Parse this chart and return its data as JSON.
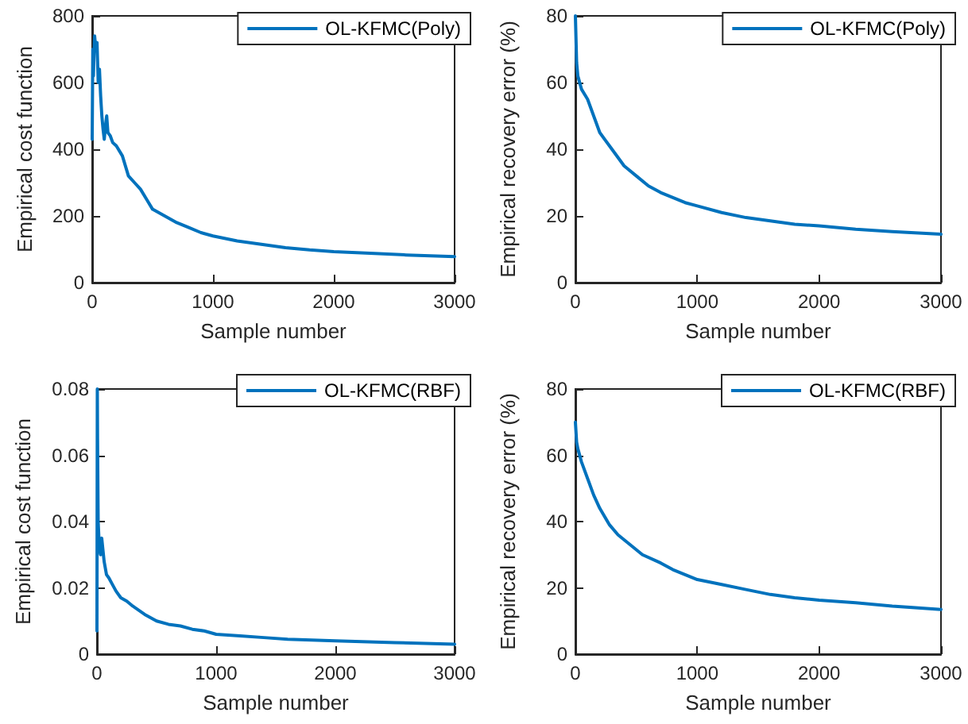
{
  "chart_data": [
    {
      "type": "line",
      "xlabel": "Sample number",
      "ylabel": "Empirical cost function",
      "xlim": [
        0,
        3000
      ],
      "xticks": [
        0,
        1000,
        2000,
        3000
      ],
      "ylim": [
        0,
        800
      ],
      "yticks": [
        0,
        200,
        400,
        600,
        800
      ],
      "grid": false,
      "legend": "top right",
      "marker": "none",
      "line_style": "solid",
      "series": [
        {
          "name": "OL-KFMC(Poly)",
          "color": "#0072bd",
          "x": [
            0,
            5,
            10,
            20,
            30,
            40,
            50,
            60,
            70,
            80,
            90,
            100,
            110,
            120,
            130,
            150,
            170,
            200,
            250,
            300,
            350,
            400,
            450,
            500,
            600,
            700,
            800,
            900,
            1000,
            1200,
            1400,
            1600,
            1800,
            2000,
            2300,
            2600,
            3000
          ],
          "values": [
            430,
            700,
            620,
            740,
            700,
            720,
            600,
            640,
            560,
            500,
            460,
            430,
            470,
            500,
            450,
            440,
            420,
            410,
            380,
            320,
            300,
            280,
            250,
            220,
            200,
            180,
            165,
            150,
            140,
            125,
            115,
            105,
            98,
            93,
            88,
            83,
            78
          ]
        }
      ]
    },
    {
      "type": "line",
      "xlabel": "Sample number",
      "ylabel": "Empirical recovery error (%)",
      "xlim": [
        0,
        3000
      ],
      "xticks": [
        0,
        1000,
        2000,
        3000
      ],
      "ylim": [
        0,
        80
      ],
      "yticks": [
        0,
        20,
        40,
        60,
        80
      ],
      "grid": false,
      "legend": "top right",
      "marker": "none",
      "line_style": "solid",
      "series": [
        {
          "name": "OL-KFMC(Poly)",
          "color": "#0072bd",
          "x": [
            0,
            10,
            20,
            50,
            100,
            150,
            200,
            300,
            400,
            500,
            600,
            700,
            800,
            900,
            1000,
            1200,
            1400,
            1600,
            1800,
            2000,
            2300,
            2600,
            3000
          ],
          "values": [
            80,
            66,
            62,
            58,
            55,
            50,
            45,
            40,
            35,
            32,
            29,
            27,
            25.5,
            24,
            23,
            21,
            19.5,
            18.5,
            17.5,
            17,
            16,
            15.3,
            14.5
          ]
        }
      ]
    },
    {
      "type": "line",
      "xlabel": "Sample number",
      "ylabel": "Empirical cost function",
      "xlim": [
        0,
        3000
      ],
      "xticks": [
        0,
        1000,
        2000,
        3000
      ],
      "ylim": [
        0,
        0.08
      ],
      "yticks": [
        0,
        0.02,
        0.04,
        0.06,
        0.08
      ],
      "grid": false,
      "legend": "top right",
      "marker": "none",
      "line_style": "solid",
      "series": [
        {
          "name": "OL-KFMC(RBF)",
          "color": "#0072bd",
          "x": [
            0,
            3,
            5,
            10,
            20,
            30,
            40,
            60,
            80,
            100,
            130,
            160,
            200,
            250,
            300,
            400,
            500,
            600,
            700,
            800,
            900,
            1000,
            1200,
            1400,
            1600,
            2000,
            2500,
            3000
          ],
          "values": [
            0.007,
            0.08,
            0.065,
            0.04,
            0.032,
            0.03,
            0.035,
            0.028,
            0.024,
            0.023,
            0.021,
            0.019,
            0.017,
            0.016,
            0.0145,
            0.012,
            0.01,
            0.009,
            0.0085,
            0.0075,
            0.007,
            0.006,
            0.0055,
            0.005,
            0.0045,
            0.004,
            0.0035,
            0.003
          ]
        }
      ]
    },
    {
      "type": "line",
      "xlabel": "Sample number",
      "ylabel": "Empirical recovery error (%)",
      "xlim": [
        0,
        3000
      ],
      "xticks": [
        0,
        1000,
        2000,
        3000
      ],
      "ylim": [
        0,
        80
      ],
      "yticks": [
        0,
        20,
        40,
        60,
        80
      ],
      "grid": false,
      "legend": "top right",
      "marker": "none",
      "line_style": "solid",
      "series": [
        {
          "name": "OL-KFMC(RBF)",
          "color": "#0072bd",
          "x": [
            0,
            10,
            20,
            50,
            100,
            150,
            200,
            280,
            350,
            450,
            550,
            700,
            800,
            900,
            1000,
            1200,
            1400,
            1600,
            1800,
            2000,
            2300,
            2600,
            3000
          ],
          "values": [
            70,
            64,
            62,
            58,
            53,
            48,
            44,
            39,
            36,
            33,
            30,
            27.5,
            25.5,
            24,
            22.5,
            21,
            19.5,
            18,
            17,
            16.3,
            15.5,
            14.5,
            13.5
          ]
        }
      ]
    }
  ]
}
